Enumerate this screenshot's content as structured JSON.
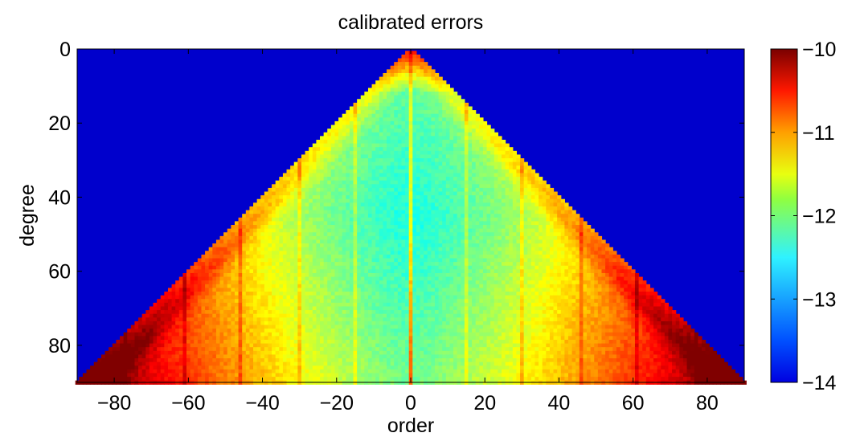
{
  "chart_data": {
    "type": "heatmap",
    "title": "calibrated errors",
    "xlabel": "order",
    "ylabel": "degree",
    "xlim": [
      -90,
      90
    ],
    "ylim": [
      0,
      90
    ],
    "y_reversed": true,
    "x_ticks": [
      -80,
      -60,
      -40,
      -20,
      0,
      20,
      40,
      60,
      80
    ],
    "y_ticks": [
      0,
      20,
      40,
      60,
      80
    ],
    "colorbar": {
      "range": [
        -14,
        -10
      ],
      "ticks": [
        -14,
        -13,
        -12,
        -11,
        -10
      ],
      "colormap": "jet"
    },
    "background_value": -14,
    "grid": false,
    "series": [
      {
        "description_of_values": "log10 error by order (x) and degree (y); nonzero only where |order| <= degree",
        "sample_points": [
          {
            "order": 0,
            "degree": 2,
            "value": -10.2
          },
          {
            "order": 0,
            "degree": 10,
            "value": -11.0
          },
          {
            "order": 0,
            "degree": 45,
            "value": -12.4
          },
          {
            "order": 0,
            "degree": 90,
            "value": -11.2
          },
          {
            "order": 20,
            "degree": 45,
            "value": -11.8
          },
          {
            "order": -20,
            "degree": 45,
            "value": -11.8
          },
          {
            "order": 40,
            "degree": 60,
            "value": -10.9
          },
          {
            "order": -40,
            "degree": 60,
            "value": -10.9
          },
          {
            "order": 60,
            "degree": 80,
            "value": -10.6
          },
          {
            "order": -60,
            "degree": 80,
            "value": -10.6
          },
          {
            "order": 85,
            "degree": 90,
            "value": -10.7
          },
          {
            "order": -85,
            "degree": 90,
            "value": -10.7
          }
        ]
      }
    ],
    "colors": {
      "background": "#0000cc",
      "axis": "#000000"
    }
  }
}
